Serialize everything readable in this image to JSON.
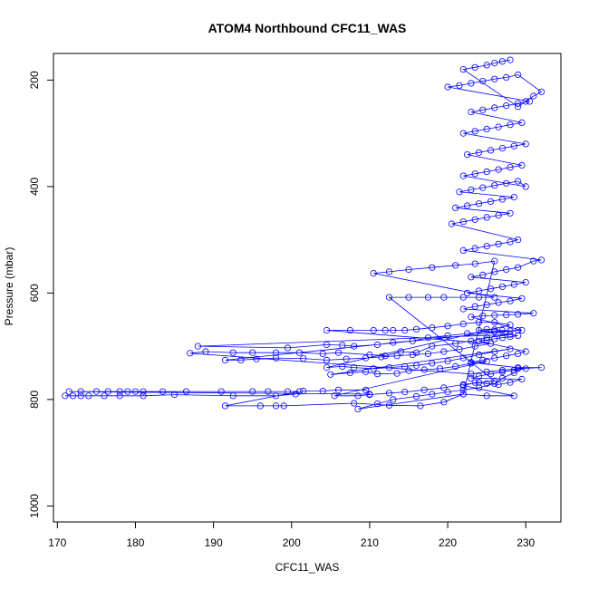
{
  "chart_data": {
    "type": "scatter",
    "title": "ATOM4 Northbound CFC11_WAS",
    "xlabel": "CFC11_WAS",
    "ylabel": "Pressure (mbar)",
    "xlim": [
      169.5,
      234.5
    ],
    "ylim": [
      1030,
      150
    ],
    "y_reversed": true,
    "x_ticks": [
      170,
      180,
      190,
      200,
      210,
      220,
      230
    ],
    "y_ticks": [
      200,
      400,
      600,
      800,
      1000
    ],
    "grid": false,
    "legend": "none",
    "colors": {
      "series": "#0000ff",
      "axes": "#000000",
      "background": "#ffffff"
    },
    "series": [
      {
        "marker": "open-circle",
        "connected": true,
        "points": [
          [
            171.0,
            793
          ],
          [
            172.0,
            793
          ],
          [
            173.0,
            793
          ],
          [
            174.0,
            793
          ],
          [
            176.0,
            793
          ],
          [
            178.0,
            793
          ],
          [
            181.0,
            793
          ],
          [
            185.0,
            791
          ],
          [
            192.5,
            793
          ],
          [
            198.0,
            793
          ],
          [
            200.5,
            790
          ],
          [
            201.5,
            784
          ],
          [
            204.0,
            784
          ],
          [
            206.0,
            782
          ],
          [
            209.5,
            782
          ],
          [
            210.0,
            790
          ],
          [
            171.5,
            785
          ],
          [
            173.0,
            785
          ],
          [
            175.0,
            785
          ],
          [
            176.5,
            785
          ],
          [
            178.0,
            785
          ],
          [
            179.0,
            785
          ],
          [
            180.0,
            785
          ],
          [
            181.0,
            785
          ],
          [
            183.5,
            785
          ],
          [
            186.5,
            785
          ],
          [
            191.0,
            785
          ],
          [
            195.0,
            785
          ],
          [
            197.0,
            785
          ],
          [
            199.5,
            785
          ],
          [
            201.0,
            785
          ],
          [
            191.5,
            812
          ],
          [
            196.0,
            812
          ],
          [
            198.0,
            812
          ],
          [
            199.0,
            812
          ],
          [
            208.0,
            807
          ],
          [
            212.5,
            811
          ],
          [
            216.5,
            812
          ],
          [
            219.5,
            805
          ],
          [
            222.0,
            790
          ],
          [
            208.5,
            818
          ],
          [
            211.0,
            808
          ],
          [
            213.0,
            800
          ],
          [
            216.0,
            794
          ],
          [
            218.0,
            790
          ],
          [
            220.0,
            786
          ],
          [
            222.0,
            782
          ],
          [
            224.0,
            778
          ],
          [
            226.0,
            770
          ],
          [
            227.0,
            760
          ],
          [
            228.5,
            750
          ],
          [
            229.0,
            740
          ],
          [
            232.0,
            740
          ],
          [
            229.0,
            742
          ],
          [
            227.0,
            745
          ],
          [
            225.0,
            748
          ],
          [
            223.0,
            752
          ],
          [
            187.0,
            713
          ],
          [
            189.0,
            710
          ],
          [
            192.5,
            712
          ],
          [
            195.0,
            712
          ],
          [
            198.0,
            712
          ],
          [
            201.0,
            712
          ],
          [
            204.0,
            714
          ],
          [
            206.0,
            712
          ],
          [
            210.0,
            716
          ],
          [
            212.0,
            718
          ],
          [
            214.0,
            710
          ],
          [
            216.0,
            712
          ],
          [
            218.0,
            700
          ],
          [
            221.0,
            695
          ],
          [
            223.0,
            690
          ],
          [
            225.0,
            684
          ],
          [
            228.0,
            678
          ],
          [
            188.0,
            700
          ],
          [
            199.5,
            703
          ],
          [
            204.5,
            697
          ],
          [
            206.5,
            698
          ],
          [
            208.0,
            700
          ],
          [
            211.0,
            697
          ],
          [
            213.0,
            693
          ],
          [
            215.5,
            690
          ],
          [
            217.5,
            684
          ],
          [
            220.0,
            680
          ],
          [
            222.5,
            676
          ],
          [
            226.0,
            672
          ],
          [
            229.0,
            670
          ],
          [
            191.5,
            726
          ],
          [
            193.5,
            726
          ],
          [
            195.5,
            724
          ],
          [
            198.0,
            722
          ],
          [
            201.5,
            723
          ],
          [
            204.5,
            726
          ],
          [
            207.0,
            724
          ],
          [
            209.5,
            722
          ],
          [
            211.5,
            720
          ],
          [
            213.5,
            718
          ],
          [
            215.5,
            716
          ],
          [
            217.5,
            714
          ],
          [
            219.5,
            710
          ],
          [
            221.5,
            706
          ],
          [
            223.5,
            700
          ],
          [
            225.5,
            695
          ],
          [
            204.5,
            670
          ],
          [
            207.5,
            670
          ],
          [
            210.5,
            670
          ],
          [
            212.0,
            670
          ],
          [
            213.0,
            670
          ],
          [
            214.5,
            670
          ],
          [
            216.0,
            668
          ],
          [
            218.0,
            665
          ],
          [
            220.0,
            662
          ],
          [
            222.0,
            658
          ],
          [
            224.0,
            655
          ],
          [
            226.0,
            655
          ],
          [
            228.0,
            660
          ],
          [
            204.5,
            740
          ],
          [
            206.5,
            738
          ],
          [
            208.0,
            740
          ],
          [
            210.5,
            742
          ],
          [
            212.5,
            740
          ],
          [
            214.5,
            738
          ],
          [
            216.0,
            736
          ],
          [
            218.0,
            732
          ],
          [
            220.0,
            728
          ],
          [
            222.0,
            722
          ],
          [
            224.0,
            716
          ],
          [
            226.0,
            710
          ],
          [
            228.0,
            705
          ],
          [
            205.0,
            753
          ],
          [
            207.5,
            750
          ],
          [
            209.5,
            748
          ],
          [
            211.0,
            752
          ],
          [
            213.5,
            751
          ],
          [
            215.0,
            746
          ],
          [
            217.0,
            744
          ],
          [
            219.0,
            742
          ],
          [
            221.0,
            738
          ],
          [
            223.0,
            732
          ],
          [
            225.0,
            728
          ],
          [
            205.5,
            793
          ],
          [
            208.5,
            793
          ],
          [
            210.0,
            791
          ],
          [
            212.5,
            788
          ],
          [
            214.5,
            786
          ],
          [
            217.0,
            782
          ],
          [
            219.5,
            778
          ],
          [
            222.0,
            772
          ],
          [
            224.0,
            768
          ],
          [
            226.0,
            765
          ],
          [
            212.5,
            608
          ],
          [
            215.0,
            608
          ],
          [
            217.5,
            608
          ],
          [
            219.5,
            608
          ],
          [
            222.0,
            608
          ],
          [
            224.0,
            608
          ],
          [
            226.0,
            608
          ],
          [
            210.5,
            563
          ],
          [
            212.5,
            560
          ],
          [
            215.0,
            556
          ],
          [
            218.0,
            552
          ],
          [
            221.0,
            548
          ],
          [
            223.5,
            545
          ],
          [
            226.0,
            540
          ],
          [
            222.0,
            790
          ],
          [
            225.0,
            793
          ],
          [
            228.5,
            793
          ],
          [
            222.0,
            774
          ],
          [
            223.5,
            768
          ],
          [
            225.0,
            770
          ],
          [
            226.5,
            772
          ],
          [
            228.0,
            768
          ],
          [
            229.5,
            762
          ],
          [
            223.0,
            760
          ],
          [
            224.0,
            756
          ],
          [
            225.5,
            752
          ],
          [
            227.0,
            748
          ],
          [
            228.5,
            745
          ],
          [
            230.0,
            742
          ],
          [
            223.0,
            730
          ],
          [
            224.5,
            726
          ],
          [
            226.0,
            722
          ],
          [
            227.5,
            718
          ],
          [
            229.0,
            714
          ],
          [
            230.0,
            710
          ],
          [
            224.0,
            690
          ],
          [
            225.0,
            688
          ],
          [
            226.0,
            686
          ],
          [
            227.0,
            684
          ],
          [
            228.0,
            682
          ],
          [
            229.0,
            680
          ],
          [
            224.0,
            670
          ],
          [
            225.0,
            668
          ],
          [
            226.0,
            669
          ],
          [
            227.0,
            670
          ],
          [
            228.0,
            671
          ],
          [
            229.5,
            670
          ],
          [
            223.0,
            645
          ],
          [
            224.5,
            643
          ],
          [
            226.0,
            642
          ],
          [
            227.5,
            641
          ],
          [
            229.0,
            640
          ],
          [
            231.0,
            638
          ],
          [
            222.0,
            630
          ],
          [
            223.5,
            625
          ],
          [
            225.0,
            622
          ],
          [
            226.5,
            618
          ],
          [
            228.0,
            615
          ],
          [
            229.5,
            610
          ],
          [
            222.5,
            600
          ],
          [
            224.0,
            596
          ],
          [
            225.5,
            592
          ],
          [
            227.0,
            588
          ],
          [
            228.5,
            584
          ],
          [
            230.0,
            580
          ],
          [
            223.0,
            570
          ],
          [
            224.5,
            566
          ],
          [
            226.0,
            560
          ],
          [
            227.5,
            556
          ],
          [
            229.0,
            552
          ],
          [
            231.0,
            540
          ],
          [
            232.0,
            538
          ],
          [
            222.0,
            520
          ],
          [
            223.5,
            516
          ],
          [
            225.0,
            512
          ],
          [
            226.5,
            508
          ],
          [
            228.0,
            504
          ],
          [
            229.0,
            500
          ],
          [
            220.5,
            470
          ],
          [
            222.0,
            466
          ],
          [
            223.5,
            462
          ],
          [
            225.0,
            458
          ],
          [
            226.5,
            454
          ],
          [
            228.0,
            450
          ],
          [
            221.0,
            440
          ],
          [
            222.5,
            436
          ],
          [
            224.0,
            432
          ],
          [
            225.5,
            428
          ],
          [
            227.0,
            424
          ],
          [
            228.5,
            420
          ],
          [
            221.5,
            410
          ],
          [
            223.0,
            406
          ],
          [
            224.5,
            402
          ],
          [
            226.0,
            398
          ],
          [
            227.5,
            394
          ],
          [
            229.0,
            390
          ],
          [
            230.0,
            400
          ],
          [
            222.0,
            380
          ],
          [
            223.5,
            376
          ],
          [
            225.0,
            372
          ],
          [
            226.5,
            368
          ],
          [
            228.0,
            364
          ],
          [
            229.5,
            360
          ],
          [
            222.5,
            340
          ],
          [
            224.0,
            336
          ],
          [
            225.5,
            332
          ],
          [
            227.0,
            328
          ],
          [
            228.5,
            324
          ],
          [
            230.0,
            320
          ],
          [
            222.0,
            300
          ],
          [
            223.5,
            296
          ],
          [
            225.0,
            292
          ],
          [
            226.5,
            288
          ],
          [
            228.0,
            284
          ],
          [
            229.5,
            280
          ],
          [
            223.0,
            260
          ],
          [
            224.5,
            256
          ],
          [
            226.0,
            252
          ],
          [
            227.5,
            248
          ],
          [
            229.0,
            244
          ],
          [
            230.5,
            240
          ],
          [
            220.0,
            213
          ],
          [
            221.5,
            210
          ],
          [
            223.0,
            206
          ],
          [
            224.5,
            202
          ],
          [
            226.0,
            198
          ],
          [
            227.5,
            195
          ],
          [
            229.0,
            190
          ],
          [
            232.0,
            222
          ],
          [
            231.0,
            230
          ],
          [
            230.0,
            240
          ],
          [
            229.0,
            250
          ],
          [
            222.0,
            180
          ],
          [
            223.5,
            176
          ],
          [
            225.0,
            172
          ],
          [
            226.0,
            168
          ],
          [
            227.0,
            165
          ],
          [
            228.0,
            162
          ]
        ]
      }
    ]
  }
}
